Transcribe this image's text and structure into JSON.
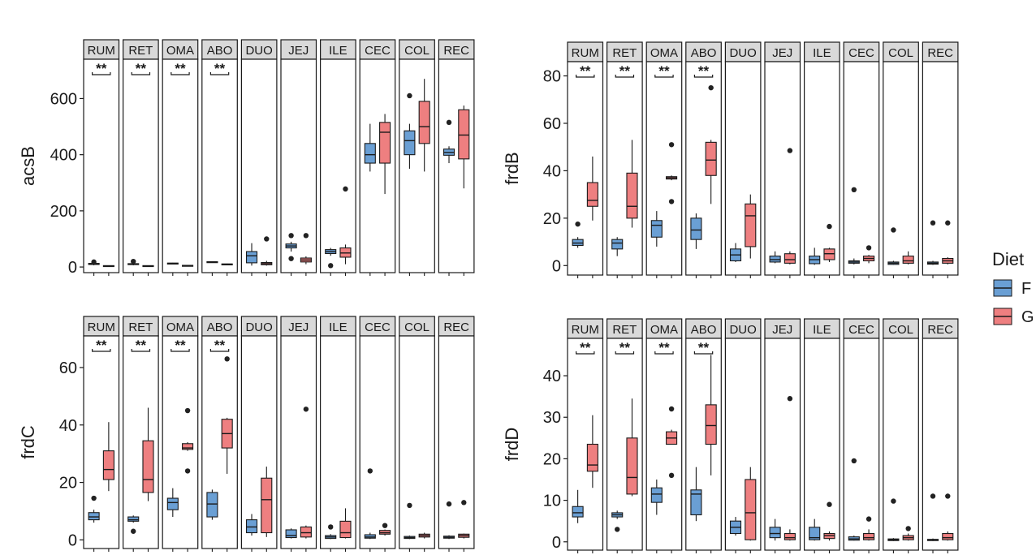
{
  "colors": {
    "F": "#6a9fd4",
    "G": "#ee7f80",
    "strip_fill": "#d9d9d9",
    "outline": "#1a1a1a"
  },
  "legend": {
    "title": "Diet",
    "items": [
      {
        "key": "F",
        "label": "F"
      },
      {
        "key": "G",
        "label": "G"
      }
    ]
  },
  "chart_data": [
    {
      "type": "boxplot",
      "ylabel": "acsB",
      "ylim": [
        -20,
        740
      ],
      "yticks": [
        0,
        200,
        400,
        600
      ],
      "facets": [
        "RUM",
        "RET",
        "OMA",
        "ABO",
        "DUO",
        "JEJ",
        "ILE",
        "CEC",
        "COL",
        "REC"
      ],
      "significance": [
        "**",
        "**",
        "**",
        "**",
        "",
        "",
        "",
        "",
        "",
        ""
      ],
      "F": [
        {
          "min": 6,
          "q1": 9,
          "median": 11,
          "q3": 13,
          "max": 16,
          "outliers": [
            18
          ]
        },
        {
          "min": 6,
          "q1": 9,
          "median": 10,
          "q3": 12,
          "max": 14,
          "outliers": [
            20
          ]
        },
        {
          "min": 10,
          "q1": 12,
          "median": 13,
          "q3": 14,
          "max": 15,
          "outliers": []
        },
        {
          "min": 15,
          "q1": 17,
          "median": 18,
          "q3": 19,
          "max": 20,
          "outliers": []
        },
        {
          "min": 5,
          "q1": 15,
          "median": 40,
          "q3": 55,
          "max": 85,
          "outliers": []
        },
        {
          "min": 55,
          "q1": 68,
          "median": 75,
          "q3": 82,
          "max": 90,
          "outliers": [
            112,
            30
          ]
        },
        {
          "min": 40,
          "q1": 48,
          "median": 55,
          "q3": 62,
          "max": 68,
          "outliers": [
            5
          ]
        },
        {
          "min": 340,
          "q1": 370,
          "median": 400,
          "q3": 440,
          "max": 510,
          "outliers": []
        },
        {
          "min": 350,
          "q1": 400,
          "median": 450,
          "q3": 485,
          "max": 510,
          "outliers": [
            610
          ]
        },
        {
          "min": 370,
          "q1": 398,
          "median": 408,
          "q3": 420,
          "max": 430,
          "outliers": [
            515
          ]
        }
      ],
      "G": [
        {
          "min": 2,
          "q1": 3,
          "median": 4,
          "q3": 5,
          "max": 6,
          "outliers": []
        },
        {
          "min": 2,
          "q1": 3,
          "median": 4,
          "q3": 5,
          "max": 6,
          "outliers": []
        },
        {
          "min": 3,
          "q1": 4,
          "median": 5,
          "q3": 6,
          "max": 7,
          "outliers": []
        },
        {
          "min": 8,
          "q1": 9,
          "median": 10,
          "q3": 11,
          "max": 12,
          "outliers": []
        },
        {
          "min": 5,
          "q1": 8,
          "median": 12,
          "q3": 16,
          "max": 22,
          "outliers": [
            100
          ]
        },
        {
          "min": 10,
          "q1": 18,
          "median": 25,
          "q3": 32,
          "max": 38,
          "outliers": [
            112
          ]
        },
        {
          "min": 10,
          "q1": 35,
          "median": 50,
          "q3": 68,
          "max": 80,
          "outliers": [
            278
          ]
        },
        {
          "min": 260,
          "q1": 370,
          "median": 480,
          "q3": 515,
          "max": 545,
          "outliers": []
        },
        {
          "min": 340,
          "q1": 440,
          "median": 500,
          "q3": 590,
          "max": 670,
          "outliers": []
        },
        {
          "min": 280,
          "q1": 385,
          "median": 470,
          "q3": 560,
          "max": 575,
          "outliers": []
        }
      ]
    },
    {
      "type": "boxplot",
      "ylabel": "frdB",
      "ylim": [
        -4,
        86
      ],
      "yticks": [
        0,
        20,
        40,
        60,
        80
      ],
      "facets": [
        "RUM",
        "RET",
        "OMA",
        "ABO",
        "DUO",
        "JEJ",
        "ILE",
        "CEC",
        "COL",
        "REC"
      ],
      "significance": [
        "**",
        "**",
        "**",
        "**",
        "",
        "",
        "",
        "",
        "",
        ""
      ],
      "F": [
        {
          "min": 7.5,
          "q1": 8.5,
          "median": 9.5,
          "q3": 11,
          "max": 12,
          "outliers": [
            17.5
          ]
        },
        {
          "min": 4,
          "q1": 7,
          "median": 9.5,
          "q3": 11,
          "max": 12,
          "outliers": []
        },
        {
          "min": 8,
          "q1": 12,
          "median": 17,
          "q3": 19,
          "max": 23,
          "outliers": []
        },
        {
          "min": 7,
          "q1": 11,
          "median": 15,
          "q3": 20,
          "max": 22,
          "outliers": []
        },
        {
          "min": 1.5,
          "q1": 2,
          "median": 4.5,
          "q3": 7,
          "max": 9.5,
          "outliers": []
        },
        {
          "min": 1,
          "q1": 1.5,
          "median": 2.5,
          "q3": 4,
          "max": 6,
          "outliers": []
        },
        {
          "min": 0.3,
          "q1": 0.8,
          "median": 2.5,
          "q3": 4,
          "max": 7.5,
          "outliers": []
        },
        {
          "min": 0.5,
          "q1": 1,
          "median": 1.5,
          "q3": 2,
          "max": 3,
          "outliers": [
            32
          ]
        },
        {
          "min": 0.3,
          "q1": 0.5,
          "median": 1,
          "q3": 1.5,
          "max": 2,
          "outliers": [
            15
          ]
        },
        {
          "min": 0.3,
          "q1": 0.6,
          "median": 1,
          "q3": 1.5,
          "max": 2,
          "outliers": [
            18
          ]
        }
      ],
      "G": [
        {
          "min": 19,
          "q1": 25,
          "median": 27.5,
          "q3": 35,
          "max": 46,
          "outliers": []
        },
        {
          "min": 16,
          "q1": 20,
          "median": 25,
          "q3": 39,
          "max": 53,
          "outliers": []
        },
        {
          "min": 36,
          "q1": 36.5,
          "median": 37,
          "q3": 37.5,
          "max": 38,
          "outliers": [
            51,
            27
          ]
        },
        {
          "min": 26,
          "q1": 38,
          "median": 44.5,
          "q3": 52,
          "max": 53,
          "outliers": [
            75
          ]
        },
        {
          "min": 3,
          "q1": 8,
          "median": 21,
          "q3": 26,
          "max": 30,
          "outliers": []
        },
        {
          "min": 0.5,
          "q1": 1,
          "median": 2.5,
          "q3": 5,
          "max": 6,
          "outliers": [
            48.5
          ]
        },
        {
          "min": 1.5,
          "q1": 2.5,
          "median": 5,
          "q3": 7,
          "max": 7.5,
          "outliers": [
            16.5
          ]
        },
        {
          "min": 1,
          "q1": 2,
          "median": 3,
          "q3": 4,
          "max": 4.5,
          "outliers": [
            7.5
          ]
        },
        {
          "min": 0.5,
          "q1": 1,
          "median": 2,
          "q3": 4,
          "max": 6,
          "outliers": []
        },
        {
          "min": 0.5,
          "q1": 1,
          "median": 2,
          "q3": 3,
          "max": 3.5,
          "outliers": [
            18
          ]
        }
      ]
    },
    {
      "type": "boxplot",
      "ylabel": "frdC",
      "ylim": [
        -3,
        71
      ],
      "yticks": [
        0,
        20,
        40,
        60
      ],
      "facets": [
        "RUM",
        "RET",
        "OMA",
        "ABO",
        "DUO",
        "JEJ",
        "ILE",
        "CEC",
        "COL",
        "REC"
      ],
      "significance": [
        "**",
        "**",
        "**",
        "**",
        "",
        "",
        "",
        "",
        "",
        ""
      ],
      "F": [
        {
          "min": 6,
          "q1": 7,
          "median": 8,
          "q3": 9.5,
          "max": 10.5,
          "outliers": [
            14.5
          ]
        },
        {
          "min": 6,
          "q1": 6.5,
          "median": 7,
          "q3": 8,
          "max": 8.5,
          "outliers": [
            3
          ]
        },
        {
          "min": 8,
          "q1": 10.5,
          "median": 13,
          "q3": 14.5,
          "max": 18,
          "outliers": []
        },
        {
          "min": 7,
          "q1": 8,
          "median": 12.5,
          "q3": 16.5,
          "max": 17.5,
          "outliers": []
        },
        {
          "min": 1.5,
          "q1": 2.5,
          "median": 4.5,
          "q3": 7,
          "max": 9,
          "outliers": []
        },
        {
          "min": 0.5,
          "q1": 0.8,
          "median": 1.5,
          "q3": 3.5,
          "max": 4,
          "outliers": []
        },
        {
          "min": 0.3,
          "q1": 0.5,
          "median": 1,
          "q3": 1.5,
          "max": 2,
          "outliers": [
            4.5
          ]
        },
        {
          "min": 0.3,
          "q1": 0.6,
          "median": 1,
          "q3": 1.8,
          "max": 2.5,
          "outliers": [
            24
          ]
        },
        {
          "min": 0.3,
          "q1": 0.5,
          "median": 0.8,
          "q3": 1.2,
          "max": 1.5,
          "outliers": [
            12
          ]
        },
        {
          "min": 0.3,
          "q1": 0.6,
          "median": 0.9,
          "q3": 1.3,
          "max": 1.6,
          "outliers": [
            12.5
          ]
        }
      ],
      "G": [
        {
          "min": 17,
          "q1": 21,
          "median": 24.5,
          "q3": 31,
          "max": 41,
          "outliers": []
        },
        {
          "min": 13.5,
          "q1": 16.5,
          "median": 21,
          "q3": 34.5,
          "max": 46,
          "outliers": []
        },
        {
          "min": 31,
          "q1": 31.5,
          "median": 32,
          "q3": 33.5,
          "max": 34,
          "outliers": [
            45,
            24
          ]
        },
        {
          "min": 23,
          "q1": 32,
          "median": 37,
          "q3": 42,
          "max": 42.5,
          "outliers": [
            63
          ]
        },
        {
          "min": 1,
          "q1": 2.5,
          "median": 14,
          "q3": 21.5,
          "max": 25.5,
          "outliers": []
        },
        {
          "min": 0.5,
          "q1": 1,
          "median": 2.5,
          "q3": 4.5,
          "max": 5,
          "outliers": [
            45.5
          ]
        },
        {
          "min": 0.5,
          "q1": 0.8,
          "median": 2.5,
          "q3": 6.5,
          "max": 11,
          "outliers": []
        },
        {
          "min": 1.5,
          "q1": 2,
          "median": 2.5,
          "q3": 3.3,
          "max": 3.6,
          "outliers": [
            5
          ]
        },
        {
          "min": 0.5,
          "q1": 1,
          "median": 1.5,
          "q3": 2,
          "max": 2.5,
          "outliers": []
        },
        {
          "min": 0.5,
          "q1": 0.9,
          "median": 1.5,
          "q3": 2,
          "max": 2.2,
          "outliers": [
            13
          ]
        }
      ]
    },
    {
      "type": "boxplot",
      "ylabel": "frdD",
      "ylim": [
        -2,
        49
      ],
      "yticks": [
        0,
        10,
        20,
        30,
        40
      ],
      "facets": [
        "RUM",
        "RET",
        "OMA",
        "ABO",
        "DUO",
        "JEJ",
        "ILE",
        "CEC",
        "COL",
        "REC"
      ],
      "significance": [
        "**",
        "**",
        "**",
        "**",
        "",
        "",
        "",
        "",
        "",
        ""
      ],
      "F": [
        {
          "min": 4.5,
          "q1": 6,
          "median": 7,
          "q3": 8.5,
          "max": 12.5,
          "outliers": []
        },
        {
          "min": 5.5,
          "q1": 6,
          "median": 6.5,
          "q3": 7,
          "max": 7.5,
          "outliers": [
            3
          ]
        },
        {
          "min": 6.5,
          "q1": 9.5,
          "median": 11.5,
          "q3": 13,
          "max": 15,
          "outliers": []
        },
        {
          "min": 5,
          "q1": 6.5,
          "median": 11.5,
          "q3": 12.5,
          "max": 18,
          "outliers": []
        },
        {
          "min": 1.5,
          "q1": 2,
          "median": 3.5,
          "q3": 5,
          "max": 6,
          "outliers": []
        },
        {
          "min": 0.3,
          "q1": 1,
          "median": 2,
          "q3": 3.5,
          "max": 5.5,
          "outliers": []
        },
        {
          "min": 0.3,
          "q1": 0.5,
          "median": 1,
          "q3": 3.5,
          "max": 5.5,
          "outliers": []
        },
        {
          "min": 0.3,
          "q1": 0.4,
          "median": 0.7,
          "q3": 1.2,
          "max": 1.5,
          "outliers": [
            19.5
          ]
        },
        {
          "min": 0.2,
          "q1": 0.3,
          "median": 0.5,
          "q3": 0.7,
          "max": 0.9,
          "outliers": [
            9.8
          ]
        },
        {
          "min": 0.2,
          "q1": 0.3,
          "median": 0.5,
          "q3": 0.6,
          "max": 0.8,
          "outliers": [
            11
          ]
        }
      ],
      "G": [
        {
          "min": 13,
          "q1": 17,
          "median": 18.5,
          "q3": 23.5,
          "max": 30.5,
          "outliers": []
        },
        {
          "min": 11,
          "q1": 11.5,
          "median": 15.5,
          "q3": 25,
          "max": 34.5,
          "outliers": []
        },
        {
          "min": 23.5,
          "q1": 23.5,
          "median": 25,
          "q3": 26.5,
          "max": 27,
          "outliers": [
            32,
            16
          ]
        },
        {
          "min": 16,
          "q1": 23.5,
          "median": 28,
          "q3": 33,
          "max": 45,
          "outliers": []
        },
        {
          "min": 0.3,
          "q1": 0.5,
          "median": 7,
          "q3": 15,
          "max": 18,
          "outliers": []
        },
        {
          "min": 0.3,
          "q1": 0.5,
          "median": 1,
          "q3": 2,
          "max": 3,
          "outliers": [
            34.5
          ]
        },
        {
          "min": 0.3,
          "q1": 0.8,
          "median": 1.5,
          "q3": 2,
          "max": 2.5,
          "outliers": [
            9
          ]
        },
        {
          "min": 0.3,
          "q1": 0.5,
          "median": 1,
          "q3": 2,
          "max": 3,
          "outliers": [
            5.5
          ]
        },
        {
          "min": 0.3,
          "q1": 0.5,
          "median": 1,
          "q3": 1.5,
          "max": 2,
          "outliers": [
            3.2
          ]
        },
        {
          "min": 0.3,
          "q1": 0.5,
          "median": 1,
          "q3": 2,
          "max": 2.5,
          "outliers": [
            11
          ]
        }
      ]
    }
  ]
}
